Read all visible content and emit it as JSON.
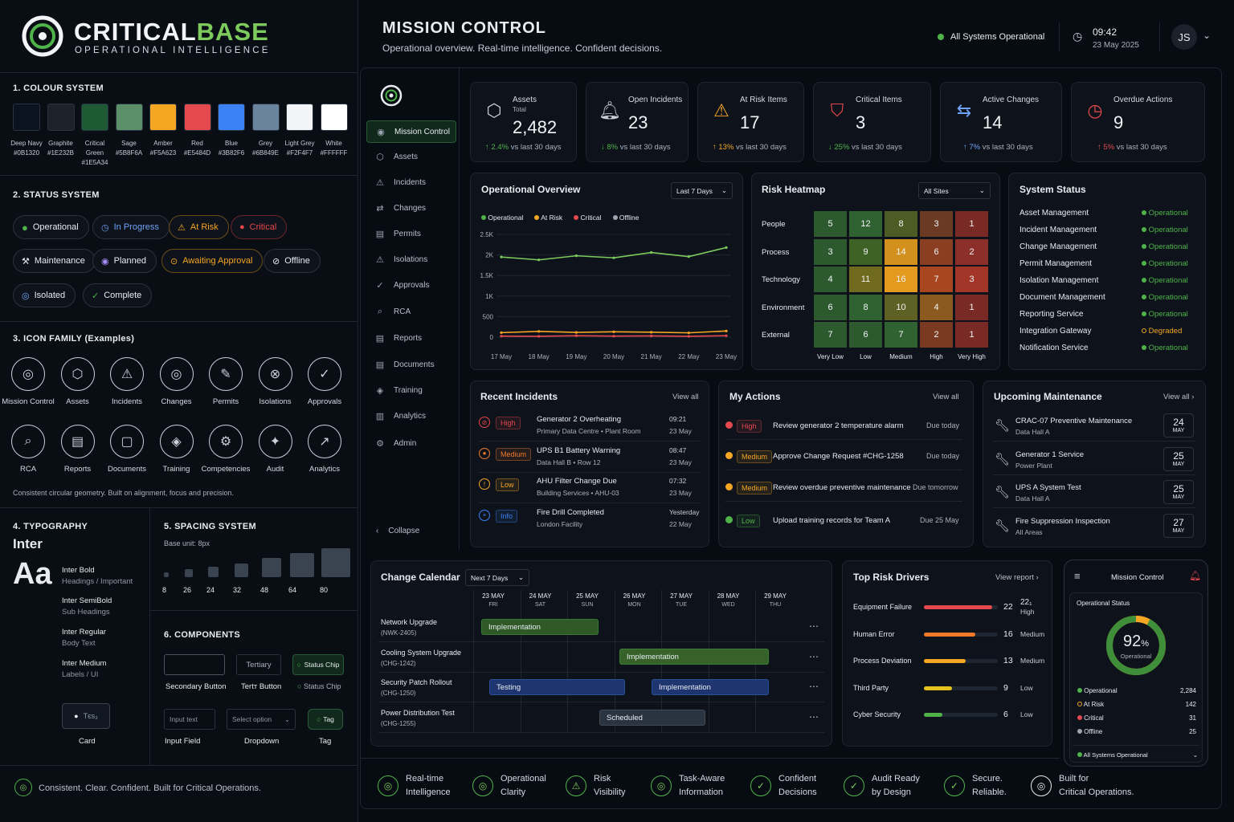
{
  "brand": {
    "name_a": "CRITICAL",
    "name_b": "BASE",
    "tagline": "OPERATIONAL INTELLIGENCE"
  },
  "colors": {
    "title": "1. COLOUR SYSTEM",
    "items": [
      {
        "name": "Deep Navy",
        "hex": "#0B1320"
      },
      {
        "name": "Graphite",
        "hex": "#1E232B"
      },
      {
        "name": "Critical Green",
        "hex": "#1E5A34"
      },
      {
        "name": "Sage",
        "hex": "#5B8F6A"
      },
      {
        "name": "Amber",
        "hex": "#F5A623"
      },
      {
        "name": "Red",
        "hex": "#E5484D"
      },
      {
        "name": "Blue",
        "hex": "#3B82F6"
      },
      {
        "name": "Grey",
        "hex": "#6B849E"
      },
      {
        "name": "Light Grey",
        "hex": "#F2F4F7"
      },
      {
        "name": "White",
        "hex": "#FFFFFF"
      }
    ]
  },
  "status_system": {
    "title": "2. STATUS SYSTEM",
    "chips": [
      "Operational",
      "In Progress",
      "At Risk",
      "Critical",
      "Maintenance",
      "Planned",
      "Awaiting Approval",
      "Offline",
      "Isolated",
      "Complete"
    ]
  },
  "icon_family": {
    "title": "3. ICON FAMILY (Examples)",
    "row1": [
      "Mission Control",
      "Assets",
      "Incidents",
      "Changes",
      "Permits",
      "Isolations",
      "Approvals"
    ],
    "row2": [
      "RCA",
      "Reports",
      "Documents",
      "Training",
      "Competencies",
      "Audit",
      "Analytics"
    ],
    "note": "Consistent circular geometry. Built on alignment, focus and precision."
  },
  "typography": {
    "title": "4. TYPOGRAPHY",
    "font": "Inter",
    "sample": "Aa",
    "styles": [
      {
        "name": "Inter Bold",
        "use": "Headings / Important"
      },
      {
        "name": "Inter SemiBold",
        "use": "Sub Headings"
      },
      {
        "name": "Inter Regular",
        "use": "Body Text"
      },
      {
        "name": "Inter Medium",
        "use": "Labels / UI"
      }
    ],
    "card_label": "Card",
    "card_text": "Tєѕ₃"
  },
  "spacing": {
    "title": "5. SPACING SYSTEM",
    "base": "Base unit: 8px",
    "values": [
      "8",
      "26",
      "24",
      "32",
      "48",
      "64",
      "80"
    ]
  },
  "components": {
    "title": "6. COMPONENTS",
    "tertiary": "Tertiary",
    "status_chip": "Status Chip",
    "secondary_label": "Secondary Button",
    "tertiary_label": "Tertт Button",
    "status_chip_label": "Status Chip",
    "input_placeholder": "Input text",
    "dropdown_placeholder": "Select option",
    "tag": "Tag",
    "input_label": "Input Field",
    "dropdown_label": "Dropdown",
    "tag_label": "Tag"
  },
  "left_footer": "Consistent. Clear. Confident. Built for Critical Operations.",
  "header": {
    "title": "MISSION CONTROL",
    "subtitle": "Operational overview. Real-time intelligence. Confident decisions.",
    "status": "All Systems Operational",
    "time": "09:42",
    "date": "23 May 2025",
    "avatar": "JS"
  },
  "nav": {
    "items": [
      "Mission Control",
      "Assets",
      "Incidents",
      "Changes",
      "Permits",
      "Isolations",
      "Approvals",
      "RCA",
      "Reports",
      "Documents",
      "Training",
      "Analytics",
      "Admin"
    ],
    "collapse": "Collapse"
  },
  "kpis": [
    {
      "title": "Assets",
      "sub": "Total",
      "value": "2,482",
      "delta": "2.4%",
      "note": "vs last 30 days"
    },
    {
      "title": "Open Incidents",
      "value": "23",
      "delta": "8%",
      "note": "vs last 30 days"
    },
    {
      "title": "At Risk Items",
      "value": "17",
      "delta": "13%",
      "note": "vs last 30 days"
    },
    {
      "title": "Critical Items",
      "value": "3",
      "delta": "25%",
      "note": "vs last 30 days"
    },
    {
      "title": "Active Changes",
      "value": "14",
      "delta": "7%",
      "note": "vs last 30 days"
    },
    {
      "title": "Overdue Actions",
      "value": "9",
      "delta": "5%",
      "note": "vs last 30 days"
    }
  ],
  "overview": {
    "title": "Operational Overview",
    "range": "Last 7 Days",
    "legend": [
      "Operational",
      "At Risk",
      "Critical",
      "Offline"
    ]
  },
  "chart_data": {
    "type": "line",
    "title": "Operational Overview",
    "categories": [
      "17 May",
      "18 May",
      "19 May",
      "20 May",
      "21 May",
      "22 May",
      "23 May"
    ],
    "yticks": [
      "0",
      "500",
      "1K",
      "1.5K",
      "2K",
      "2.5K"
    ],
    "ylim": [
      0,
      2500
    ],
    "series": [
      {
        "name": "Operational",
        "color": "#7CCB5C",
        "values": [
          1950,
          1880,
          1980,
          1930,
          2060,
          1960,
          2180
        ]
      },
      {
        "name": "At Risk",
        "color": "#F5A623",
        "values": [
          110,
          140,
          115,
          130,
          120,
          105,
          150
        ]
      },
      {
        "name": "Critical",
        "color": "#E5484D",
        "values": [
          25,
          20,
          35,
          25,
          30,
          20,
          35
        ]
      },
      {
        "name": "Offline",
        "color": "#9BA5B1",
        "values": [
          0,
          0,
          0,
          0,
          0,
          0,
          0
        ]
      }
    ]
  },
  "heatmap": {
    "title": "Risk Heatmap",
    "filter": "All Sites",
    "rows": [
      "People",
      "Process",
      "Technology",
      "Environment",
      "External"
    ],
    "cols": [
      "Very Low",
      "Low",
      "Medium",
      "High",
      "Very High"
    ],
    "values": [
      [
        5,
        12,
        8,
        3,
        1
      ],
      [
        3,
        9,
        14,
        6,
        2
      ],
      [
        4,
        11,
        16,
        7,
        3
      ],
      [
        6,
        8,
        10,
        4,
        1
      ],
      [
        7,
        6,
        7,
        2,
        1
      ]
    ],
    "colors": [
      [
        "#2C5A2E",
        "#2F6230",
        "#4D5B25",
        "#6A3A22",
        "#7A2A25"
      ],
      [
        "#2C5A2E",
        "#3E6226",
        "#D4901C",
        "#8A3E22",
        "#8C2E2A"
      ],
      [
        "#2C5A2E",
        "#6F6A1E",
        "#E39A1F",
        "#A8461F",
        "#A33428"
      ],
      [
        "#2C5A2E",
        "#2F6230",
        "#5F6124",
        "#8C5A1E",
        "#7A2A25"
      ],
      [
        "#2C5A2E",
        "#2C5A2E",
        "#2F6230",
        "#7A3A22",
        "#7A2A25"
      ]
    ]
  },
  "system_status": {
    "title": "System Status",
    "items": [
      {
        "name": "Asset Management",
        "state": "Operational"
      },
      {
        "name": "Incident Management",
        "state": "Operational"
      },
      {
        "name": "Change Management",
        "state": "Operational"
      },
      {
        "name": "Permit Management",
        "state": "Operational"
      },
      {
        "name": "Isolation Management",
        "state": "Operational"
      },
      {
        "name": "Document Management",
        "state": "Operational"
      },
      {
        "name": "Reporting Service",
        "state": "Operational"
      },
      {
        "name": "Integration Gateway",
        "state": "Degraded"
      },
      {
        "name": "Notification Service",
        "state": "Operational"
      }
    ]
  },
  "incidents": {
    "title": "Recent Incidents",
    "view": "View all",
    "items": [
      {
        "level": "High",
        "title": "Generator 2 Overheating",
        "loc": "Primary Data Centre • Plant Room",
        "time": "09:21",
        "date": "23 May"
      },
      {
        "level": "Medium",
        "title": "UPS B1 Battery Warning",
        "loc": "Data Hall B • Row 12",
        "time": "08:47",
        "date": "23 May"
      },
      {
        "level": "Low",
        "title": "AHU Filter Change Due",
        "loc": "Building Services • AHU-03",
        "time": "07:32",
        "date": "23 May"
      },
      {
        "level": "Info",
        "title": "Fire Drill Completed",
        "loc": "London Facility",
        "time": "Yesterday",
        "date": "22 May"
      }
    ]
  },
  "actions": {
    "title": "My Actions",
    "view": "View all",
    "items": [
      {
        "level": "High",
        "text": "Review generator 2 temperature alarm",
        "due": "Due today"
      },
      {
        "level": "Medium",
        "text": "Approve Change Request #CHG-1258",
        "due": "Due today"
      },
      {
        "level": "Medium",
        "text": "Review overdue preventive maintenance",
        "due": "Due tomorrow"
      },
      {
        "level": "Low",
        "text": "Upload training records for Team A",
        "due": "Due 25 May"
      }
    ]
  },
  "maintenance": {
    "title": "Upcoming Maintenance",
    "view": "View all ›",
    "items": [
      {
        "title": "CRAC-07 Preventive Maintenance",
        "loc": "Data Hall A",
        "day": "24",
        "mon": "MAY"
      },
      {
        "title": "Generator 1 Service",
        "loc": "Power Plant",
        "day": "25",
        "mon": "MAY"
      },
      {
        "title": "UPS A System Test",
        "loc": "Data Hall A",
        "day": "25",
        "mon": "MAY"
      },
      {
        "title": "Fire Suppression Inspection",
        "loc": "All Areas",
        "day": "27",
        "mon": "MAY"
      }
    ]
  },
  "calendar": {
    "title": "Change Calendar",
    "range": "Next 7 Days",
    "days": [
      {
        "d": "23 MAY",
        "w": "FRI"
      },
      {
        "d": "24 MAY",
        "w": "SAT"
      },
      {
        "d": "25 MAY",
        "w": "SUN"
      },
      {
        "d": "26 MAY",
        "w": "MON"
      },
      {
        "d": "27 MAY",
        "w": "TUE"
      },
      {
        "d": "28 MAY",
        "w": "WED"
      },
      {
        "d": "29 MAY",
        "w": "THU"
      }
    ],
    "rows": [
      {
        "name": "Network Upgrade",
        "id": "(NWK-2405)"
      },
      {
        "name": "Cooling System Upgrade",
        "id": "(CHG-1242)"
      },
      {
        "name": "Security Patch Rollout",
        "id": "(CHG-1250)"
      },
      {
        "name": "Power Distribution Test",
        "id": "(CHG-1255)"
      }
    ],
    "bars": [
      "Implementation",
      "Implementation",
      "Testing",
      "Implementation",
      "Scheduled"
    ]
  },
  "risk_drivers": {
    "title": "Top Risk Drivers",
    "view": "View report ›",
    "items": [
      {
        "name": "Equipment Failure",
        "value": "22",
        "level": "High",
        "frac": 0.92,
        "color": "#E5484D"
      },
      {
        "name": "Human Error",
        "value": "16",
        "level": "Medium",
        "frac": 0.7,
        "color": "#F07A2A"
      },
      {
        "name": "Process Deviation",
        "value": "13",
        "level": "Medium",
        "frac": 0.56,
        "color": "#F5A623"
      },
      {
        "name": "Third Party",
        "value": "9",
        "level": "Low",
        "frac": 0.38,
        "color": "#E8C21C"
      },
      {
        "name": "Cyber Security",
        "value": "6",
        "level": "Low",
        "frac": 0.25,
        "color": "#4FB34A"
      }
    ],
    "extra_value": "22₁"
  },
  "mobile": {
    "title": "Mission Control",
    "section": "Operational Status",
    "pct": "92",
    "pct_unit": "%",
    "pct_label": "Operational",
    "pct_frac": 0.92,
    "items": [
      {
        "name": "Operational",
        "value": "2,284"
      },
      {
        "name": "At Risk",
        "value": "142"
      },
      {
        "name": "Critical",
        "value": "31"
      },
      {
        "name": "Offline",
        "value": "25"
      }
    ],
    "footer": "All Systems Operational"
  },
  "footer": [
    {
      "a": "Real-time",
      "b": "Intelligence"
    },
    {
      "a": "Operational",
      "b": "Clarity"
    },
    {
      "a": "Risk",
      "b": "Visibility"
    },
    {
      "a": "Task-Aware",
      "b": "Information"
    },
    {
      "a": "Confident",
      "b": "Decisions"
    },
    {
      "a": "Audit Ready",
      "b": "by Design"
    },
    {
      "a": "Secure.",
      "b": "Reliable."
    },
    {
      "a": "Built for",
      "b": "Critical Operations."
    }
  ]
}
